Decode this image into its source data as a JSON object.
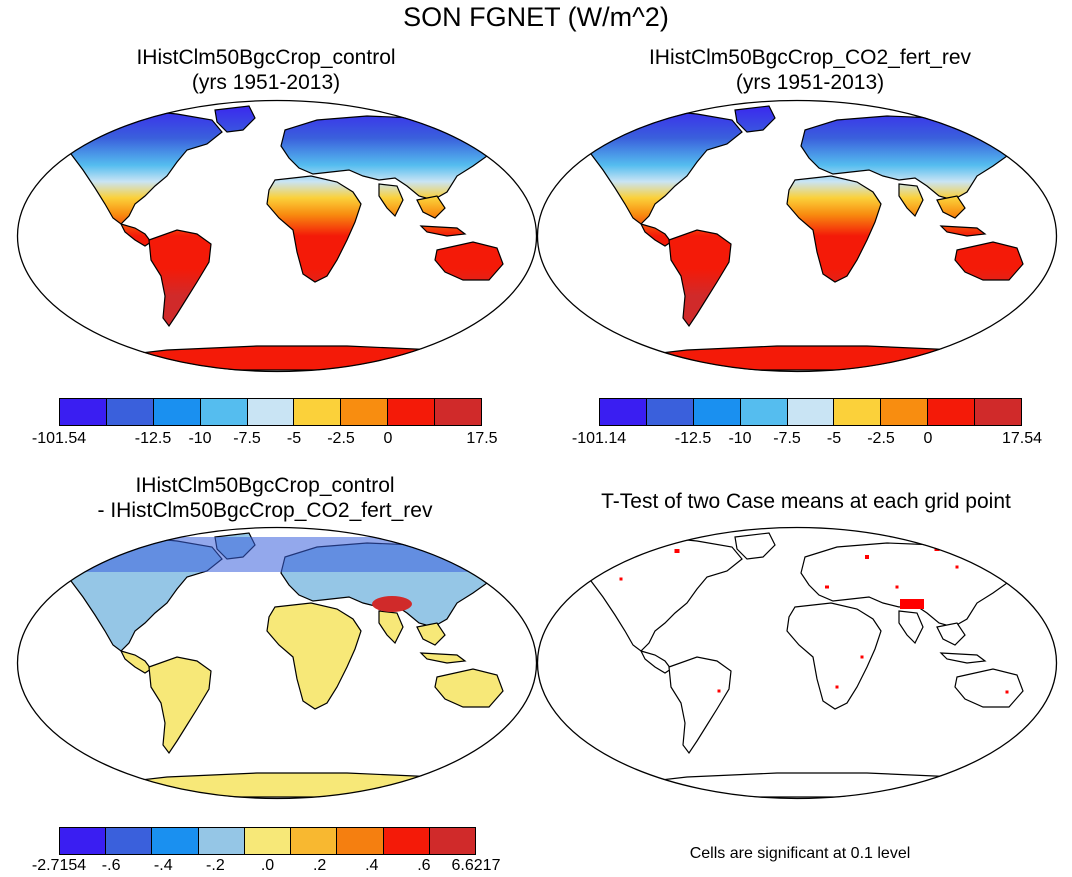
{
  "title": "SON FGNET (W/m^2)",
  "panels": [
    {
      "title_line1": "IHistClm50BgcCrop_control",
      "title_line2": "(yrs 1951-2013)"
    },
    {
      "title_line1": "IHistClm50BgcCrop_CO2_fert_rev",
      "title_line2": "(yrs 1951-2013)"
    },
    {
      "title_line1": "IHistClm50BgcCrop_control",
      "title_line2": "- IHistClm50BgcCrop_CO2_fert_rev"
    },
    {
      "title_line1": "T-Test of two Case means at each grid point",
      "title_line2": ""
    }
  ],
  "colorbars": [
    {
      "colors": [
        "#3a1ef2",
        "#3a60dc",
        "#1a90f0",
        "#55bdef",
        "#c9e4f4",
        "#fbd13a",
        "#f88d10",
        "#f41a08",
        "#d02a2a"
      ],
      "labels": [
        "-101.54",
        "-12.5",
        "-10",
        "-7.5",
        "-5",
        "-2.5",
        "0",
        "17.5"
      ]
    },
    {
      "colors": [
        "#3a1ef2",
        "#3a60dc",
        "#1a90f0",
        "#55bdef",
        "#c9e4f4",
        "#fbd13a",
        "#f88d10",
        "#f41a08",
        "#d02a2a"
      ],
      "labels": [
        "-101.14",
        "-12.5",
        "-10",
        "-7.5",
        "-5",
        "-2.5",
        "0",
        "17.54"
      ]
    },
    {
      "colors": [
        "#3a1ef2",
        "#3a60dc",
        "#1a90f0",
        "#95c6e6",
        "#f7e878",
        "#f8b830",
        "#f57f10",
        "#f41a08",
        "#d02a2a"
      ],
      "labels": [
        "-2.7154",
        "-.6",
        "-.4",
        "-.2",
        ".0",
        ".2",
        ".4",
        ".6",
        "6.6217"
      ]
    }
  ],
  "ttest_note": "Cells are significant at 0.1 level",
  "map_palette": {
    "ocean": "#ffffff",
    "coast": "#000000",
    "cold_dark": "#3a1ef2",
    "cold": "#3a60dc",
    "cool": "#55bdef",
    "mild": "#c9e4f4",
    "warm": "#fbd13a",
    "hot": "#f88d10",
    "very_hot": "#f41a08",
    "hottest": "#d02a2a",
    "diff_pos": "#f7e878",
    "diff_neg": "#95c6e6",
    "significant": "#ff0000"
  }
}
